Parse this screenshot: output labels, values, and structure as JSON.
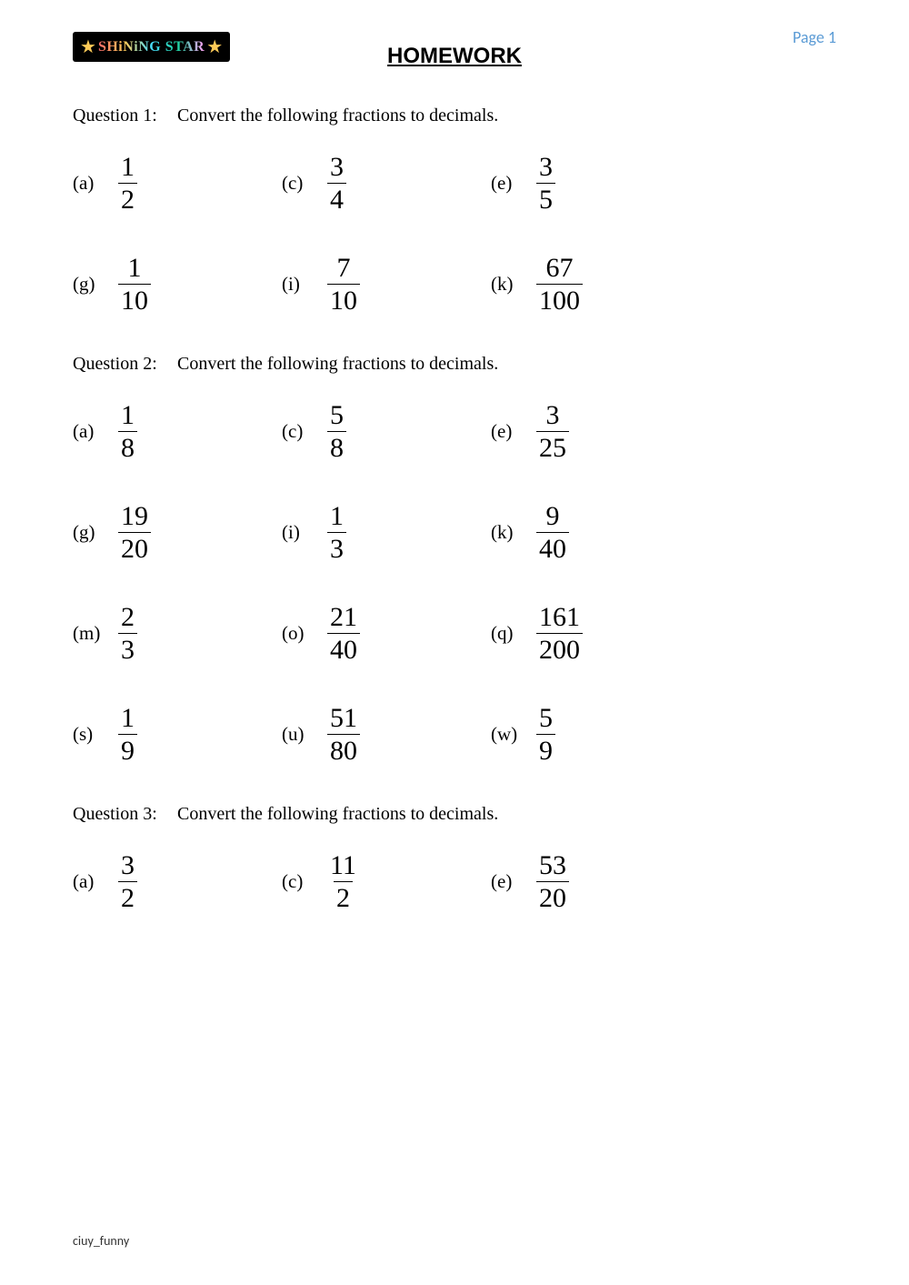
{
  "page_number": "Page 1",
  "logo": {
    "text": "SHiNiNG STAR",
    "star_glyph": "★"
  },
  "title": "HOMEWORK",
  "footer": "ciuy_funny",
  "colors": {
    "page_number": "#5B9BD5",
    "text": "#000000",
    "background": "#ffffff",
    "logo_bg": "#000000",
    "star": "#feca57"
  },
  "questions": [
    {
      "label": "Question 1:",
      "prompt": "Convert the following fractions to decimals.",
      "rows": [
        [
          {
            "label": "(a)",
            "num": "1",
            "den": "2"
          },
          {
            "label": "(c)",
            "num": "3",
            "den": "4"
          },
          {
            "label": "(e)",
            "num": "3",
            "den": "5"
          }
        ],
        [
          {
            "label": "(g)",
            "num": "1",
            "den": "10"
          },
          {
            "label": "(i)",
            "num": "7",
            "den": "10"
          },
          {
            "label": "(k)",
            "num": "67",
            "den": "100"
          }
        ]
      ]
    },
    {
      "label": "Question 2:",
      "prompt": "Convert the following fractions to decimals.",
      "rows": [
        [
          {
            "label": "(a)",
            "num": "1",
            "den": "8"
          },
          {
            "label": "(c)",
            "num": "5",
            "den": "8"
          },
          {
            "label": "(e)",
            "num": "3",
            "den": "25"
          }
        ],
        [
          {
            "label": "(g)",
            "num": "19",
            "den": "20"
          },
          {
            "label": "(i)",
            "num": "1",
            "den": "3"
          },
          {
            "label": "(k)",
            "num": "9",
            "den": "40"
          }
        ],
        [
          {
            "label": "(m)",
            "num": "2",
            "den": "3"
          },
          {
            "label": "(o)",
            "num": "21",
            "den": "40"
          },
          {
            "label": "(q)",
            "num": "161",
            "den": "200"
          }
        ],
        [
          {
            "label": "(s)",
            "num": "1",
            "den": "9"
          },
          {
            "label": "(u)",
            "num": "51",
            "den": "80"
          },
          {
            "label": "(w)",
            "num": "5",
            "den": "9"
          }
        ]
      ]
    },
    {
      "label": "Question 3:",
      "prompt": "Convert the following fractions to decimals.",
      "rows": [
        [
          {
            "label": "(a)",
            "num": "3",
            "den": "2"
          },
          {
            "label": "(c)",
            "num": "11",
            "den": "2"
          },
          {
            "label": "(e)",
            "num": "53",
            "den": "20"
          }
        ]
      ]
    }
  ]
}
